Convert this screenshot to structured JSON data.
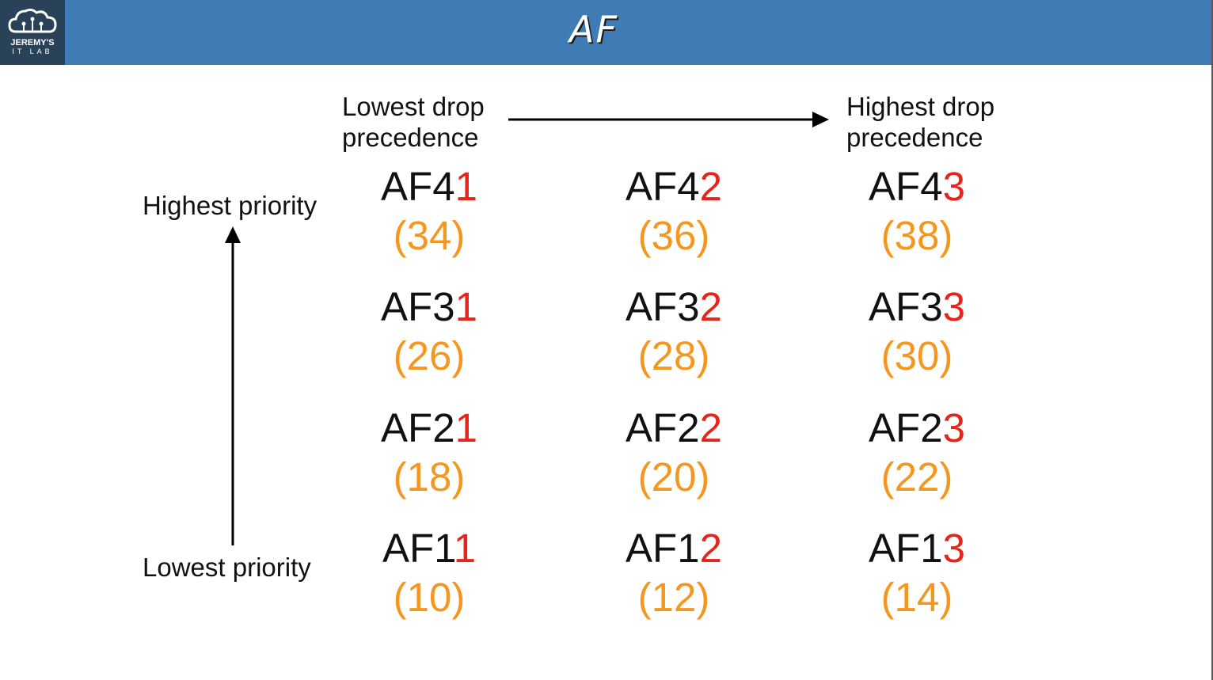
{
  "header": {
    "title": "AF",
    "logo_text_line1": "JEREMY'S",
    "logo_text_line2": "IT LAB"
  },
  "labels": {
    "lowest_drop": "Lowest drop precedence",
    "highest_drop": "Highest drop precedence",
    "highest_priority": "Highest priority",
    "lowest_priority": "Lowest priority"
  },
  "colors": {
    "header": "#3f7cb6",
    "drop_digit": "#e8231a",
    "dscp_value": "#f5961f"
  },
  "grid": [
    [
      {
        "prefix": "AF4",
        "drop": "1",
        "dscp": "(34)"
      },
      {
        "prefix": "AF4",
        "drop": "2",
        "dscp": "(36)"
      },
      {
        "prefix": "AF4",
        "drop": "3",
        "dscp": "(38)"
      }
    ],
    [
      {
        "prefix": "AF3",
        "drop": "1",
        "dscp": "(26)"
      },
      {
        "prefix": "AF3",
        "drop": "2",
        "dscp": "(28)"
      },
      {
        "prefix": "AF3",
        "drop": "3",
        "dscp": "(30)"
      }
    ],
    [
      {
        "prefix": "AF2",
        "drop": "1",
        "dscp": "(18)"
      },
      {
        "prefix": "AF2",
        "drop": "2",
        "dscp": "(20)"
      },
      {
        "prefix": "AF2",
        "drop": "3",
        "dscp": "(22)"
      }
    ],
    [
      {
        "prefix": "AF1",
        "drop": "1",
        "dscp": "(10)"
      },
      {
        "prefix": "AF1",
        "drop": "2",
        "dscp": "(12)"
      },
      {
        "prefix": "AF1",
        "drop": "3",
        "dscp": "(14)"
      }
    ]
  ]
}
